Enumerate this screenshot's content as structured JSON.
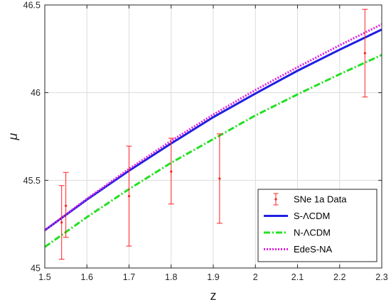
{
  "chart_data": {
    "type": "line",
    "xlabel": "z",
    "ylabel": "μ",
    "xlim": [
      1.5,
      2.3
    ],
    "ylim": [
      45,
      46.5
    ],
    "grid": true,
    "legend_position": "bottom-right",
    "x_ticks": [
      "1.5",
      "1.6",
      "1.7",
      "1.8",
      "1.9",
      "2",
      "2.1",
      "2.2",
      "2.3"
    ],
    "y_ticks": [
      "45",
      "45.5",
      "46",
      "46.5"
    ],
    "series": [
      {
        "name": "S-ΛCDM",
        "style": "solid",
        "color": "#1f1fe0",
        "x": [
          1.5,
          1.6,
          1.7,
          1.8,
          1.9,
          2.0,
          2.1,
          2.2,
          2.3
        ],
        "y": [
          45.215,
          45.39,
          45.555,
          45.71,
          45.86,
          45.995,
          46.125,
          46.245,
          46.36
        ]
      },
      {
        "name": "N-ΛCDM",
        "style": "dashdot",
        "color": "#22e022",
        "x": [
          1.5,
          1.6,
          1.7,
          1.8,
          1.9,
          2.0,
          2.1,
          2.2,
          2.3
        ],
        "y": [
          45.12,
          45.29,
          45.45,
          45.6,
          45.735,
          45.87,
          45.99,
          46.105,
          46.215
        ]
      },
      {
        "name": "EdeS-NA",
        "style": "dotted",
        "color": "#e020e0",
        "x": [
          1.5,
          1.6,
          1.7,
          1.8,
          1.9,
          2.0,
          2.1,
          2.2,
          2.3
        ],
        "y": [
          45.215,
          45.395,
          45.565,
          45.725,
          45.875,
          46.015,
          46.145,
          46.27,
          46.39
        ]
      }
    ],
    "data_points": {
      "name": "SNe 1a Data",
      "color": "#ff2020",
      "points": [
        {
          "x": 1.54,
          "y": 45.26,
          "yerr_low": 45.05,
          "yerr_high": 45.47
        },
        {
          "x": 1.55,
          "y": 45.355,
          "yerr_low": 45.175,
          "yerr_high": 45.545
        },
        {
          "x": 1.7,
          "y": 45.41,
          "yerr_low": 45.125,
          "yerr_high": 45.695
        },
        {
          "x": 1.8,
          "y": 45.55,
          "yerr_low": 45.365,
          "yerr_high": 45.74
        },
        {
          "x": 1.915,
          "y": 45.51,
          "yerr_low": 45.255,
          "yerr_high": 45.765
        },
        {
          "x": 2.26,
          "y": 46.225,
          "yerr_low": 45.975,
          "yerr_high": 46.475
        }
      ]
    }
  }
}
